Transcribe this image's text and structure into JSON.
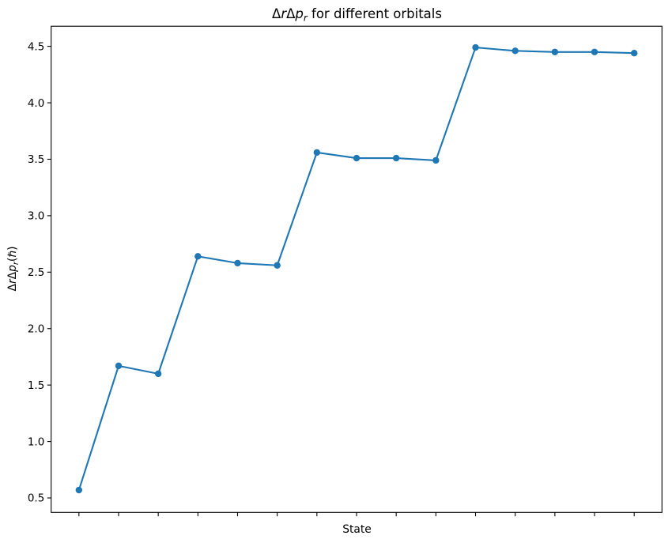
{
  "figure": {
    "background": "#ffffff",
    "title": {
      "delta1": "Δ",
      "r1": "r",
      "delta2": "Δ",
      "p1": "p",
      "sub1": "r",
      "rest": " for different orbitals"
    },
    "xlabel": "State",
    "ylabel": {
      "delta1": "Δ",
      "r1": "r",
      "delta2": "Δ",
      "p1": "p",
      "sub1": "r",
      "paren_open": "(",
      "hbar": "ℏ",
      "paren_close": ")"
    }
  },
  "chart_data": {
    "type": "line",
    "title": "ΔrΔp_r for different orbitals",
    "xlabel": "State",
    "ylabel": "ΔrΔp_r(ℏ)",
    "x": [
      1,
      2,
      3,
      4,
      5,
      6,
      7,
      8,
      9,
      10,
      11,
      12,
      13,
      14,
      15
    ],
    "values": [
      0.57,
      1.67,
      1.6,
      2.64,
      2.58,
      2.56,
      3.56,
      3.51,
      3.51,
      3.49,
      4.49,
      4.46,
      4.45,
      4.45,
      4.44
    ],
    "xlim": [
      0.3,
      15.7
    ],
    "ylim": [
      0.372,
      4.678
    ],
    "yticks": [
      0.5,
      1.0,
      1.5,
      2.0,
      2.5,
      3.0,
      3.5,
      4.0,
      4.5
    ],
    "xticks": [
      1,
      2,
      3,
      4,
      5,
      6,
      7,
      8,
      9,
      10,
      11,
      12,
      13,
      14,
      15
    ],
    "x_tick_labels_visible": false,
    "grid": false,
    "legend": null,
    "line_color": "#1f77b4",
    "marker": "o",
    "axis_color": "#000000",
    "text_color": "#000000"
  }
}
